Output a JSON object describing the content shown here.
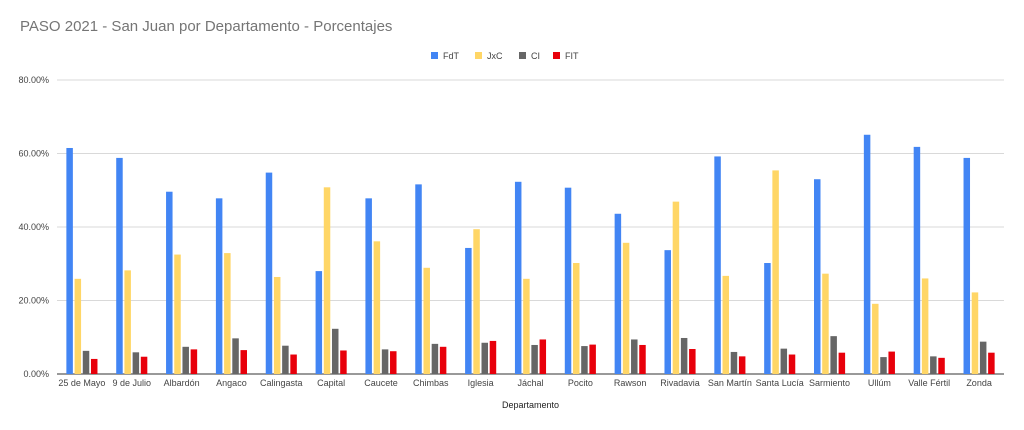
{
  "chart_data": {
    "type": "bar",
    "title": "PASO 2021 - San Juan por Departamento - Porcentajes",
    "xlabel": "Departamento",
    "ylabel": "",
    "ylim": [
      0,
      80
    ],
    "yticks": [
      "0.00%",
      "20.00%",
      "40.00%",
      "60.00%",
      "80.00%"
    ],
    "grid": true,
    "legend_position": "top",
    "categories": [
      "25 de Mayo",
      "9 de Julio",
      "Albardón",
      "Angaco",
      "Calingasta",
      "Capital",
      "Caucete",
      "Chimbas",
      "Iglesia",
      "Jáchal",
      "Pocito",
      "Rawson",
      "Rivadavia",
      "San Martín",
      "Santa Lucía",
      "Sarmiento",
      "Ullúm",
      "Valle Fértil",
      "Zonda"
    ],
    "series": [
      {
        "name": "FdT",
        "color": "#4285F4",
        "values": [
          61.5,
          58.8,
          49.6,
          47.8,
          54.8,
          28.0,
          47.8,
          51.6,
          34.3,
          52.3,
          50.7,
          43.6,
          33.7,
          59.2,
          30.2,
          53.0,
          65.1,
          61.8,
          58.8
        ]
      },
      {
        "name": "JxC",
        "color": "#FFD666",
        "values": [
          25.9,
          28.2,
          32.5,
          32.9,
          26.4,
          50.8,
          36.1,
          28.9,
          39.4,
          25.9,
          30.2,
          35.7,
          46.9,
          26.7,
          55.4,
          27.3,
          19.1,
          26.0,
          22.2
        ]
      },
      {
        "name": "CI",
        "color": "#666666",
        "values": [
          6.3,
          5.9,
          7.4,
          9.7,
          7.7,
          12.3,
          6.7,
          8.2,
          8.5,
          7.9,
          7.6,
          9.4,
          9.8,
          6.0,
          6.9,
          10.3,
          4.6,
          4.8,
          8.8
        ]
      },
      {
        "name": "FIT",
        "color": "#E8000B",
        "values": [
          4.1,
          4.7,
          6.7,
          6.5,
          5.3,
          6.4,
          6.2,
          7.4,
          9.0,
          9.4,
          8.0,
          7.9,
          6.8,
          4.8,
          5.3,
          5.8,
          6.1,
          4.4,
          5.8
        ]
      }
    ]
  }
}
